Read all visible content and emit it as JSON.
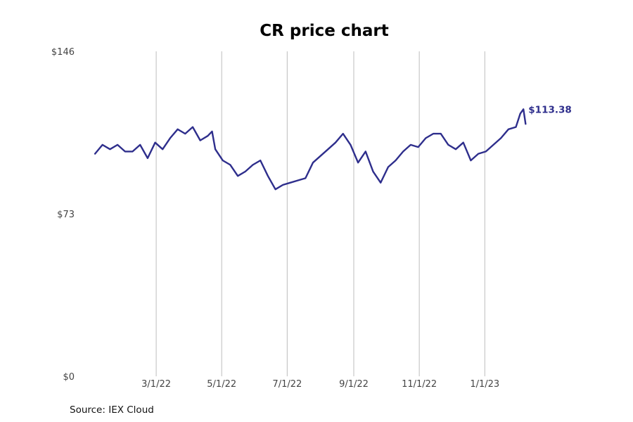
{
  "chart_data": {
    "type": "line",
    "title": "CR price chart",
    "source": "Source: IEX Cloud",
    "ylim": [
      0,
      146
    ],
    "y_ticks": [
      "$146",
      "$73",
      "$0"
    ],
    "y_tick_values": [
      146,
      73,
      0
    ],
    "x_ticks": [
      "3/1/22",
      "5/1/22",
      "7/1/22",
      "9/1/22",
      "11/1/22",
      "1/1/23"
    ],
    "x_tick_dates": [
      "2022-03-01",
      "2022-05-01",
      "2022-07-01",
      "2022-09-01",
      "2022-11-01",
      "2023-01-01"
    ],
    "x_range": [
      "2022-01-01",
      "2023-04-13"
    ],
    "grid": "vertical",
    "line_color": "#2e2e8c",
    "last_value_label": "$113.38",
    "series": [
      {
        "x": [
          "2022-01-03",
          "2022-01-10",
          "2022-01-17",
          "2022-01-24",
          "2022-01-31",
          "2022-02-07",
          "2022-02-14",
          "2022-02-21",
          "2022-02-28",
          "2022-03-07",
          "2022-03-14",
          "2022-03-21",
          "2022-03-28",
          "2022-04-04",
          "2022-04-11",
          "2022-04-18",
          "2022-04-22",
          "2022-04-25",
          "2022-05-02",
          "2022-05-09",
          "2022-05-16",
          "2022-05-23",
          "2022-05-30",
          "2022-06-06",
          "2022-06-13",
          "2022-06-20",
          "2022-06-27",
          "2022-07-04",
          "2022-07-11",
          "2022-07-18",
          "2022-07-25",
          "2022-08-01",
          "2022-08-08",
          "2022-08-15",
          "2022-08-22",
          "2022-08-29",
          "2022-09-05",
          "2022-09-12",
          "2022-09-19",
          "2022-09-26",
          "2022-10-03",
          "2022-10-10",
          "2022-10-17",
          "2022-10-24",
          "2022-10-31",
          "2022-11-07",
          "2022-11-14",
          "2022-11-21",
          "2022-11-28",
          "2022-12-05",
          "2022-12-12",
          "2022-12-19",
          "2022-12-26",
          "2023-01-02",
          "2023-01-09",
          "2023-01-16",
          "2023-01-23",
          "2023-01-30",
          "2023-02-03",
          "2023-02-06",
          "2023-02-08"
        ],
        "values": [
          100,
          104,
          102,
          104,
          101,
          101,
          104,
          98,
          105,
          102,
          107,
          111,
          109,
          112,
          106,
          108,
          110,
          102,
          97,
          95,
          90,
          92,
          95,
          97,
          90,
          84,
          86,
          87,
          88,
          89,
          96,
          99,
          102,
          105,
          109,
          104,
          96,
          101,
          92,
          87,
          94,
          97,
          101,
          104,
          103,
          107,
          109,
          109,
          104,
          102,
          105,
          97,
          100,
          101,
          104,
          107,
          111,
          112,
          118,
          120,
          113.38
        ]
      }
    ]
  }
}
